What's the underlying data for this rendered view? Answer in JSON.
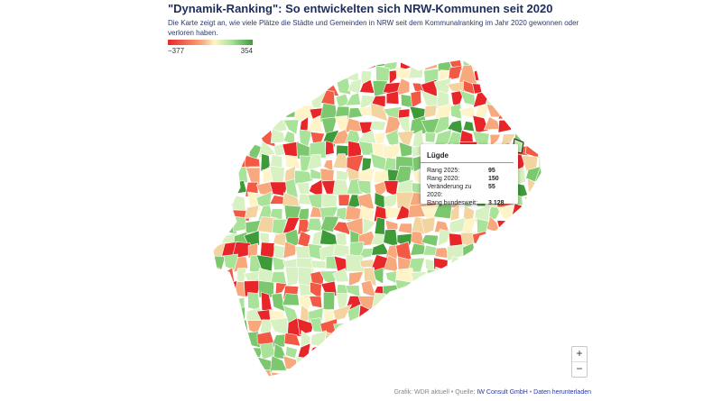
{
  "header": {
    "title": "\"Dynamik-Ranking\": So entwickelten sich NRW-Kommunen seit 2020",
    "subtitle": "Die Karte zeigt an, wie viele Plätze die Städte und Gemeinden in NRW seit dem Kommunalranking im Jahr 2020 gewonnen oder verloren haben."
  },
  "legend": {
    "min": "−377",
    "max": "354",
    "colors": [
      "#e8262a",
      "#f7a87c",
      "#fff4c8",
      "#a9e39a",
      "#3f9a3a"
    ]
  },
  "tooltip": {
    "title": "Lügde",
    "rows": [
      {
        "label": "Rang 2025:",
        "value": "95"
      },
      {
        "label": "Rang 2020:",
        "value": "150"
      },
      {
        "label": "Veränderung zu 2020:",
        "value": "55"
      },
      {
        "label": "Rang bundesweit:",
        "value": "3.128"
      }
    ]
  },
  "zoom": {
    "in": "+",
    "out": "−"
  },
  "footer": {
    "credit": "Grafik: WDR aktuell • Quelle:",
    "source_link": "IW Consult GmbH",
    "separator": "•",
    "download_link": "Daten herunterladen"
  },
  "map": {
    "region_fill_palette": [
      "#e8262a",
      "#f25a45",
      "#f7a87c",
      "#f3d3a0",
      "#fff4c8",
      "#d8f1c2",
      "#a9e39a",
      "#7cc86e",
      "#3f9a3a"
    ],
    "highlight_region": "Lügde"
  }
}
